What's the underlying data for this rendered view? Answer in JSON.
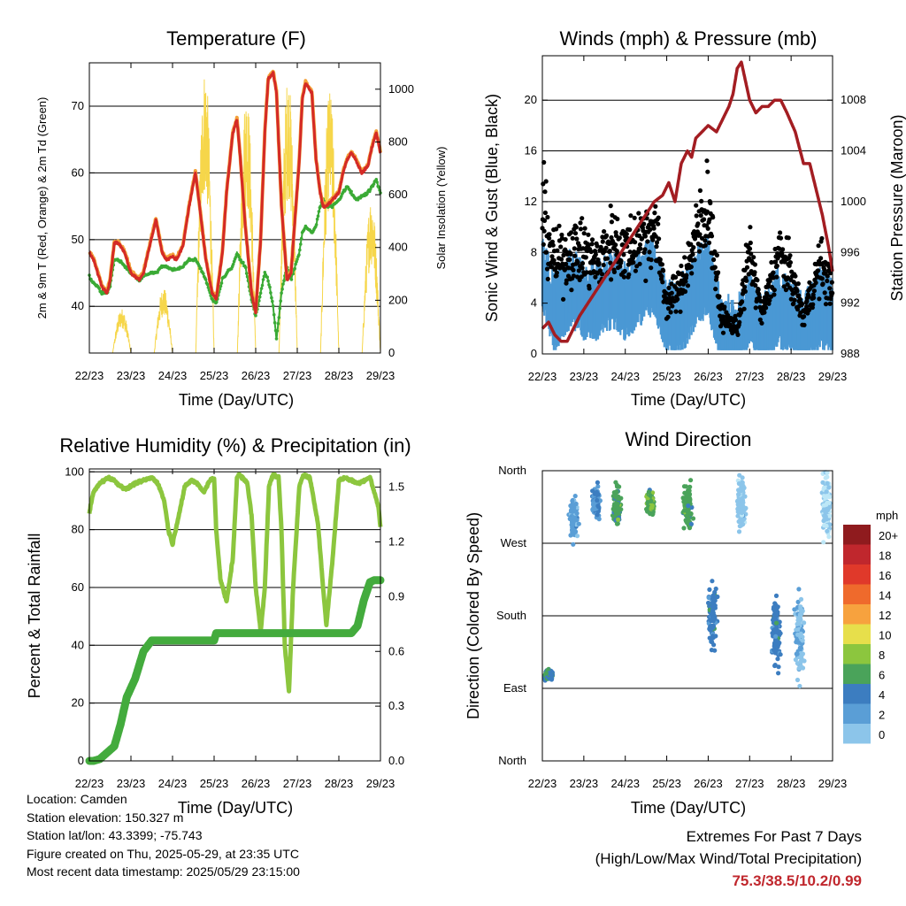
{
  "colors": {
    "temp_red": "#d42a26",
    "temp_orange": "#f4a13a",
    "dew_green": "#3aaa35",
    "solar_yellow": "#f6d64a",
    "wind_blue": "#4a98d4",
    "gust_black": "#000000",
    "pressure_maroon": "#a31d22",
    "rh_green": "#8cc63e",
    "precip_green": "#43ab3d",
    "speed_scale": [
      "#bde7f7",
      "#8cc5ea",
      "#5a9ed6",
      "#3c7dc0",
      "#4aa35a",
      "#8cc63e",
      "#e7df4b",
      "#f7a23e",
      "#ef6a2c",
      "#e0392a",
      "#c0272d",
      "#8f1b1e"
    ]
  },
  "time_ticks": [
    "22/23",
    "23/23",
    "24/23",
    "25/23",
    "26/23",
    "27/23",
    "28/23",
    "29/23"
  ],
  "xlabel": "Time (Day/UTC)",
  "chart_data": [
    {
      "id": "temperature",
      "type": "line",
      "title": "Temperature (F)",
      "xlabel": "Time (Day/UTC)",
      "ylabel": "2m & 9m T (Red, Orange) & 2m Td (Green)",
      "y2label": "Solar Insolation (Yellow)",
      "ylim": [
        33,
        76.5
      ],
      "yticks": [
        "40",
        "50",
        "60",
        "70"
      ],
      "y2lim": [
        0,
        1100
      ],
      "y2ticks": [
        "0",
        "200",
        "400",
        "600",
        "800",
        "1000"
      ],
      "x_days": [
        0,
        0.1,
        0.2,
        0.3,
        0.42,
        0.5,
        0.6,
        0.7,
        0.85,
        1,
        1.2,
        1.3,
        1.45,
        1.6,
        1.75,
        1.85,
        2,
        2.1,
        2.25,
        2.4,
        2.55,
        2.65,
        2.8,
        2.95,
        3.05,
        3.2,
        3.3,
        3.45,
        3.55,
        3.62,
        3.75,
        3.9,
        4,
        4.12,
        4.22,
        4.3,
        4.42,
        4.5,
        4.62,
        4.75,
        4.85,
        5.05,
        5.12,
        5.2,
        5.35,
        5.45,
        5.55,
        5.62,
        5.7,
        5.85,
        6,
        6.1,
        6.2,
        6.3,
        6.4,
        6.55,
        6.7,
        6.8,
        6.9,
        7
      ],
      "series": [
        {
          "name": "2m T",
          "values": [
            48,
            47,
            45,
            43,
            42,
            44,
            49.5,
            49.5,
            48,
            45,
            44,
            45,
            49,
            53,
            48,
            47,
            47.5,
            47,
            49,
            55,
            60,
            55,
            47,
            42,
            41,
            48,
            57,
            66,
            68,
            63,
            52,
            42,
            39,
            50,
            66,
            74,
            75,
            72,
            55,
            44,
            45,
            62,
            71,
            73.5,
            72,
            62,
            57,
            55,
            55,
            56,
            57,
            60,
            62,
            63,
            62,
            60,
            61,
            64,
            66,
            63
          ]
        },
        {
          "name": "9m T",
          "values": [
            48.2,
            47.2,
            45.2,
            43.2,
            42.2,
            44.2,
            49.7,
            49.7,
            48.2,
            45.2,
            44.2,
            45.2,
            49.2,
            53.2,
            48.2,
            47.2,
            47.7,
            47.2,
            49.2,
            55.2,
            60.2,
            55.2,
            47.2,
            42.2,
            41.2,
            48.2,
            57.2,
            66.2,
            68.2,
            63.2,
            52.2,
            42.2,
            39.2,
            50.2,
            66.2,
            74.2,
            75.2,
            72.2,
            55.2,
            44.2,
            45.2,
            62.2,
            71.2,
            73.7,
            72.2,
            62.2,
            57.2,
            55.2,
            55.2,
            56.2,
            57.2,
            60.2,
            62.2,
            63.2,
            62.2,
            60.2,
            61.2,
            64.2,
            66.2,
            63.2
          ]
        },
        {
          "name": "2m Td",
          "values": [
            44.5,
            43.5,
            43,
            42,
            42,
            43,
            47,
            47,
            46,
            45,
            44,
            44.5,
            45,
            45,
            46,
            46,
            45.5,
            45.5,
            46,
            47,
            47,
            46,
            44,
            41,
            40.5,
            44,
            45,
            46,
            48,
            47,
            46,
            41,
            38.5,
            42,
            45,
            44,
            40,
            35,
            42,
            46,
            44,
            48,
            51,
            52,
            51,
            52,
            55,
            56,
            55,
            55,
            56,
            57,
            58,
            57,
            56,
            56.5,
            57,
            58,
            59,
            57
          ]
        },
        {
          "name": "Solar Insolation",
          "axis": "y2",
          "peaks_days": [
            0.78,
            1.78,
            2.78,
            3.78,
            4.78,
            5.78,
            6.78
          ],
          "peaks": [
            170,
            250,
            1090,
            1000,
            1060,
            1000,
            600
          ]
        }
      ]
    },
    {
      "id": "winds",
      "type": "line+scatter",
      "title": "Winds (mph) & Pressure (mb)",
      "xlabel": "Time (Day/UTC)",
      "ylabel": "Sonic Wind & Gust (Blue, Black)",
      "y2label": "Station Pressure (Maroon)",
      "ylim": [
        0,
        23.5
      ],
      "yticks": [
        "0",
        "4",
        "8",
        "12",
        "16",
        "20"
      ],
      "y2lim": [
        988,
        1011.5
      ],
      "y2ticks": [
        "988",
        "992",
        "996",
        "1000",
        "1004",
        "1008"
      ],
      "pressure_days": [
        0,
        0.15,
        0.3,
        0.45,
        0.6,
        0.75,
        0.9,
        1.1,
        1.3,
        1.5,
        1.7,
        1.9,
        2.1,
        2.3,
        2.5,
        2.7,
        2.9,
        3.05,
        3.2,
        3.35,
        3.5,
        3.6,
        3.7,
        3.85,
        4,
        4.2,
        4.35,
        4.5,
        4.6,
        4.7,
        4.8,
        4.9,
        5,
        5.15,
        5.3,
        5.45,
        5.6,
        5.75,
        5.9,
        6.1,
        6.3,
        6.45,
        6.6,
        6.75,
        6.9,
        7
      ],
      "pressure": [
        990,
        990.5,
        989.5,
        989,
        989,
        990,
        991,
        992,
        993,
        994,
        995,
        996,
        997,
        998,
        999,
        1000,
        1000.5,
        1001.5,
        1000,
        1003,
        1004,
        1003.5,
        1005,
        1005.5,
        1006,
        1005.5,
        1006.5,
        1007.5,
        1008.5,
        1010.5,
        1011,
        1009.5,
        1008,
        1007,
        1007.5,
        1007.5,
        1008,
        1008,
        1007,
        1005.5,
        1003,
        1003,
        1001,
        999,
        996.5,
        994.5
      ],
      "wind_base_days": [
        0,
        0.3,
        0.7,
        1,
        1.3,
        1.7,
        2,
        2.3,
        2.7,
        3,
        3.3,
        3.7,
        4,
        4.3,
        4.7,
        5,
        5.3,
        5.7,
        6,
        6.3,
        6.7,
        7
      ],
      "wind_base": [
        6,
        3,
        5,
        4,
        4,
        5,
        4,
        5,
        6,
        2.5,
        2.5,
        5,
        6,
        1.5,
        1,
        3.5,
        1.5,
        3.5,
        2.5,
        1.5,
        3.5,
        2.5
      ],
      "gust_base": [
        11,
        7,
        8,
        8,
        7,
        9,
        8,
        9,
        10,
        4,
        5,
        9,
        12,
        3,
        2,
        8,
        3,
        8,
        6,
        3,
        7,
        5
      ]
    },
    {
      "id": "rh_precip",
      "type": "line",
      "title": "Relative Humidity (%) & Precipitation (in)",
      "xlabel": "Time (Day/UTC)",
      "ylabel": "Percent & Total Rainfall",
      "ylim": [
        0,
        101
      ],
      "yticks": [
        "0",
        "20",
        "40",
        "60",
        "80",
        "100"
      ],
      "y2lim": [
        0,
        1.6
      ],
      "y2ticks": [
        "0.0",
        "0.3",
        "0.6",
        "0.9",
        "1.2",
        "1.5"
      ],
      "x_days": [
        0,
        0.1,
        0.25,
        0.45,
        0.6,
        0.75,
        0.9,
        1.1,
        1.3,
        1.5,
        1.65,
        1.8,
        1.9,
        2,
        2.15,
        2.3,
        2.45,
        2.6,
        2.75,
        2.9,
        3,
        3.05,
        3.15,
        3.3,
        3.45,
        3.55,
        3.6,
        3.68,
        3.8,
        3.9,
        4,
        4.12,
        4.22,
        4.32,
        4.42,
        4.55,
        4.62,
        4.7,
        4.8,
        4.9,
        5.05,
        5.15,
        5.3,
        5.5,
        5.62,
        5.7,
        5.85,
        6,
        6.15,
        6.3,
        6.45,
        6.6,
        6.75,
        6.85,
        6.95,
        7
      ],
      "series": [
        {
          "name": "Relative Humidity",
          "values": [
            86,
            93,
            96,
            98,
            97,
            95,
            94,
            96,
            97,
            98,
            96,
            90,
            80,
            75,
            85,
            95,
            97,
            96,
            93,
            97,
            98,
            80,
            63,
            55,
            70,
            98,
            99,
            98,
            96,
            85,
            60,
            45,
            60,
            95,
            99,
            98,
            80,
            40,
            24,
            60,
            95,
            99,
            98,
            82,
            60,
            47,
            70,
            97,
            98,
            97,
            96,
            97,
            98,
            93,
            88,
            81
          ]
        },
        {
          "name": "Total Precipitation",
          "axis": "y2",
          "values": [
            0,
            0,
            0.01,
            0.05,
            0.08,
            0.2,
            0.35,
            0.45,
            0.6,
            0.66,
            0.66,
            0.66,
            0.66,
            0.66,
            0.66,
            0.66,
            0.66,
            0.66,
            0.66,
            0.66,
            0.66,
            0.7,
            0.7,
            0.7,
            0.7,
            0.7,
            0.7,
            0.7,
            0.7,
            0.7,
            0.7,
            0.7,
            0.7,
            0.7,
            0.7,
            0.7,
            0.7,
            0.7,
            0.7,
            0.7,
            0.7,
            0.7,
            0.7,
            0.7,
            0.7,
            0.7,
            0.7,
            0.7,
            0.7,
            0.7,
            0.74,
            0.88,
            0.98,
            0.99,
            0.99,
            0.99
          ]
        }
      ]
    },
    {
      "id": "wind_direction",
      "type": "scatter",
      "title": "Wind Direction",
      "xlabel": "Time (Day/UTC)",
      "ylabel": "Direction (Colored By Speed)",
      "yticks": [
        "North",
        "East",
        "South",
        "West",
        "North"
      ],
      "ylim": [
        0,
        360
      ],
      "legend": {
        "title": "mph",
        "labels": [
          "20+",
          "18",
          "16",
          "14",
          "12",
          "10",
          "8",
          "6",
          "4",
          "2",
          "0"
        ],
        "placement": "right"
      },
      "clusters": [
        {
          "day": 0.15,
          "dir": 107,
          "spread": 6,
          "speed": 7
        },
        {
          "day": 0.75,
          "dir": 300,
          "spread": 25,
          "speed": 4
        },
        {
          "day": 1.3,
          "dir": 320,
          "spread": 20,
          "speed": 5
        },
        {
          "day": 1.8,
          "dir": 315,
          "spread": 25,
          "speed": 8
        },
        {
          "day": 2.6,
          "dir": 320,
          "spread": 15,
          "speed": 9
        },
        {
          "day": 3.5,
          "dir": 315,
          "spread": 25,
          "speed": 8
        },
        {
          "day": 4.1,
          "dir": 180,
          "spread": 40,
          "speed": 6
        },
        {
          "day": 4.8,
          "dir": 320,
          "spread": 30,
          "speed": 2
        },
        {
          "day": 5.65,
          "dir": 160,
          "spread": 40,
          "speed": 6
        },
        {
          "day": 6.2,
          "dir": 150,
          "spread": 50,
          "speed": 3
        },
        {
          "day": 6.85,
          "dir": 320,
          "spread": 40,
          "speed": 1
        }
      ]
    }
  ],
  "info": {
    "location": "Location: Camden",
    "elevation": "Station elevation: 150.327 m",
    "latlon": "Station lat/lon: 43.3399; -75.743",
    "created": "Figure created on Thu, 2025-05-29, at 23:35 UTC",
    "latest": "Most recent data timestamp: 2025/05/29 23:15:00"
  },
  "extremes": {
    "title": "Extremes For Past 7 Days",
    "subtitle": "(High/Low/Max Wind/Total Precipitation)",
    "values": "75.3/38.5/10.2/0.99"
  }
}
